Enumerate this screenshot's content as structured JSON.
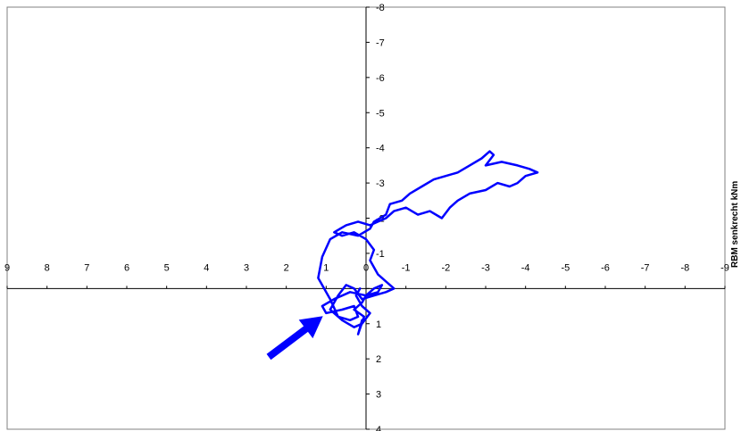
{
  "chart_data": {
    "type": "line",
    "title": "",
    "xlabel": "",
    "ylabel": "RBM senkrecht kNm",
    "xlim": [
      9,
      -9
    ],
    "ylim": [
      -8,
      4
    ],
    "x_ticks": [
      "9",
      "8",
      "7",
      "6",
      "5",
      "4",
      "3",
      "2",
      "1",
      "0",
      "-1",
      "-2",
      "-3",
      "-4",
      "-5",
      "-6",
      "-7",
      "-8",
      "-9"
    ],
    "y_ticks": [
      "-8",
      "-7",
      "-6",
      "-5",
      "-4",
      "-3",
      "-2",
      "-1",
      "",
      "1",
      "2",
      "3",
      "4"
    ],
    "grid": false,
    "legend": "none",
    "colors": {
      "line": "#0000ff",
      "axis": "#000000",
      "plot_border": "#808080",
      "arrow": "#0000ff"
    },
    "series": [
      {
        "values": [
          [
            0.1,
            0.9
          ],
          [
            0.2,
            1.3
          ],
          [
            0.05,
            0.8
          ],
          [
            0.3,
            0.6
          ],
          [
            0.1,
            0.4
          ],
          [
            0.0,
            0.2
          ],
          [
            -0.2,
            0.0
          ],
          [
            -0.4,
            -0.1
          ],
          [
            -0.3,
            0.1
          ],
          [
            0.0,
            0.2
          ],
          [
            0.4,
            0.1
          ],
          [
            0.8,
            0.3
          ],
          [
            1.1,
            0.5
          ],
          [
            1.0,
            0.7
          ],
          [
            0.6,
            0.6
          ],
          [
            0.3,
            0.5
          ],
          [
            0.2,
            0.8
          ],
          [
            0.4,
            0.9
          ],
          [
            0.7,
            0.8
          ],
          [
            0.9,
            0.3
          ],
          [
            1.2,
            -0.3
          ],
          [
            1.1,
            -0.9
          ],
          [
            0.9,
            -1.4
          ],
          [
            0.6,
            -1.6
          ],
          [
            0.2,
            -1.5
          ],
          [
            -0.1,
            -1.7
          ],
          [
            -0.2,
            -1.9
          ],
          [
            -0.5,
            -2.1
          ],
          [
            -0.6,
            -2.4
          ],
          [
            -0.9,
            -2.5
          ],
          [
            -1.1,
            -2.7
          ],
          [
            -1.4,
            -2.9
          ],
          [
            -1.7,
            -3.1
          ],
          [
            -2.0,
            -3.2
          ],
          [
            -2.3,
            -3.3
          ],
          [
            -2.6,
            -3.5
          ],
          [
            -2.9,
            -3.7
          ],
          [
            -3.1,
            -3.9
          ],
          [
            -3.2,
            -3.8
          ],
          [
            -3.0,
            -3.5
          ],
          [
            -3.4,
            -3.6
          ],
          [
            -3.8,
            -3.5
          ],
          [
            -4.1,
            -3.4
          ],
          [
            -4.3,
            -3.3
          ],
          [
            -4.0,
            -3.2
          ],
          [
            -3.8,
            -3.0
          ],
          [
            -3.6,
            -2.9
          ],
          [
            -3.3,
            -3.0
          ],
          [
            -3.0,
            -2.8
          ],
          [
            -2.6,
            -2.7
          ],
          [
            -2.3,
            -2.5
          ],
          [
            -2.1,
            -2.3
          ],
          [
            -1.9,
            -2.0
          ],
          [
            -1.6,
            -2.2
          ],
          [
            -1.3,
            -2.1
          ],
          [
            -1.0,
            -2.3
          ],
          [
            -0.7,
            -2.2
          ],
          [
            -0.5,
            -2.0
          ],
          [
            -0.3,
            -1.9
          ],
          [
            -0.1,
            -1.8
          ],
          [
            0.2,
            -1.9
          ],
          [
            0.5,
            -1.8
          ],
          [
            0.8,
            -1.6
          ],
          [
            0.6,
            -1.5
          ],
          [
            0.3,
            -1.6
          ],
          [
            0.0,
            -1.4
          ],
          [
            -0.2,
            -1.1
          ],
          [
            -0.1,
            -0.8
          ],
          [
            -0.3,
            -0.4
          ],
          [
            -0.5,
            -0.2
          ],
          [
            -0.7,
            0.0
          ],
          [
            -0.5,
            0.1
          ],
          [
            -0.2,
            0.2
          ],
          [
            0.1,
            0.3
          ],
          [
            0.3,
            0.0
          ],
          [
            0.5,
            -0.1
          ],
          [
            0.7,
            0.2
          ],
          [
            0.9,
            0.6
          ],
          [
            0.6,
            0.9
          ],
          [
            0.3,
            1.1
          ],
          [
            0.1,
            1.0
          ],
          [
            -0.1,
            0.7
          ],
          [
            0.1,
            0.5
          ],
          [
            0.25,
            0.2
          ],
          [
            0.15,
            0.0
          ]
        ]
      }
    ]
  }
}
